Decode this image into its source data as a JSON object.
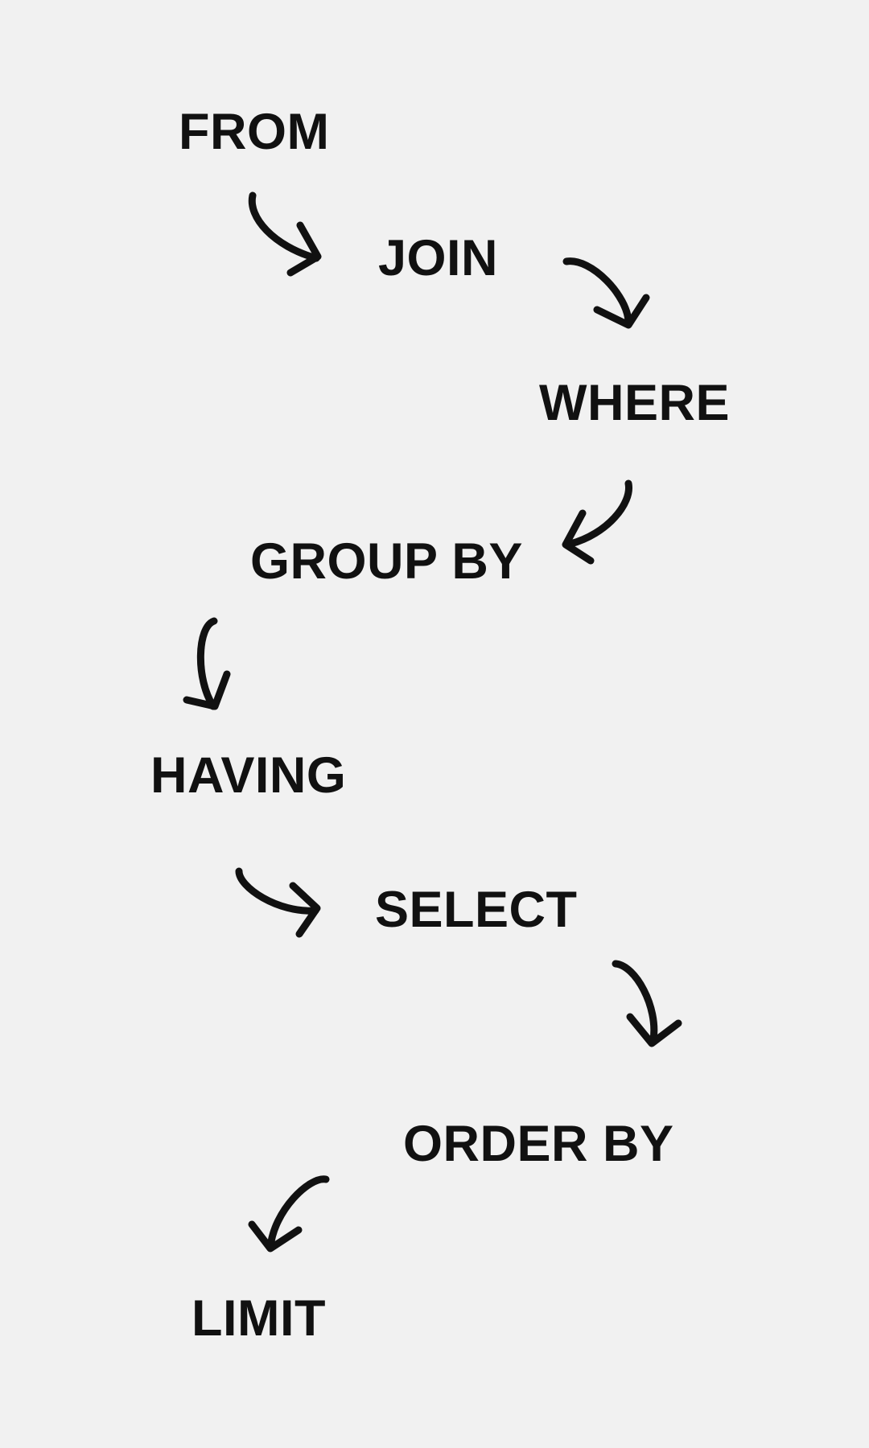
{
  "steps": [
    {
      "id": "from",
      "label": "FROM"
    },
    {
      "id": "join",
      "label": "JOIN"
    },
    {
      "id": "where",
      "label": "WHERE"
    },
    {
      "id": "group_by",
      "label": "GROUP BY"
    },
    {
      "id": "having",
      "label": "HAVING"
    },
    {
      "id": "select",
      "label": "SELECT"
    },
    {
      "id": "order_by",
      "label": "ORDER BY"
    },
    {
      "id": "limit",
      "label": "LIMIT"
    }
  ],
  "connections": [
    {
      "from": "FROM",
      "to": "JOIN"
    },
    {
      "from": "JOIN",
      "to": "WHERE"
    },
    {
      "from": "WHERE",
      "to": "GROUP BY"
    },
    {
      "from": "GROUP BY",
      "to": "HAVING"
    },
    {
      "from": "HAVING",
      "to": "SELECT"
    },
    {
      "from": "SELECT",
      "to": "ORDER BY"
    },
    {
      "from": "ORDER BY",
      "to": "LIMIT"
    }
  ],
  "colors": {
    "background": "#f1f1f1",
    "text": "#111111",
    "arrow": "#111111"
  },
  "icons": {
    "connector": "curved-arrow-icon"
  }
}
